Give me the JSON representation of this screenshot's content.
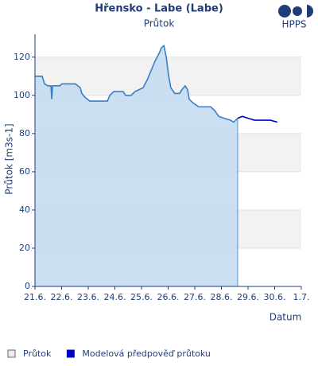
{
  "chart_data": {
    "type": "area-line",
    "title": "Hřensko - Labe (Labe)",
    "subtitle": "Průtok",
    "logo_text": "HPPS",
    "y_label": "Průtok [m3s-1]",
    "x_label": "Datum",
    "ylim": [
      0,
      132
    ],
    "yticks": [
      0,
      20,
      40,
      60,
      80,
      100,
      120
    ],
    "bands": [
      [
        20,
        40
      ],
      [
        60,
        80
      ],
      [
        100,
        120
      ]
    ],
    "xlim": [
      0,
      10
    ],
    "xticks": [
      {
        "value": 0,
        "label": "21.6."
      },
      {
        "value": 1,
        "label": "22.6."
      },
      {
        "value": 2,
        "label": "23.6."
      },
      {
        "value": 3,
        "label": "24.6."
      },
      {
        "value": 4,
        "label": "25.6."
      },
      {
        "value": 5,
        "label": "26.6."
      },
      {
        "value": 6,
        "label": "27.6."
      },
      {
        "value": 7,
        "label": "28.6."
      },
      {
        "value": 8,
        "label": "29.6."
      },
      {
        "value": 9,
        "label": "30.6."
      },
      {
        "value": 10,
        "label": "1.7."
      }
    ],
    "legend": "bottom-left",
    "series": [
      {
        "name": "Průtok",
        "color": "#3a7fc4",
        "fill": "#c5dcf1",
        "area": true,
        "x": [
          0,
          0.27,
          0.36,
          0.48,
          0.6,
          0.63,
          0.66,
          0.93,
          1.01,
          1.52,
          1.61,
          1.7,
          1.76,
          1.88,
          2.06,
          2.72,
          2.81,
          2.96,
          3.31,
          3.4,
          3.61,
          3.76,
          4.06,
          4.21,
          4.36,
          4.51,
          4.66,
          4.75,
          4.84,
          4.93,
          5.01,
          5.1,
          5.25,
          5.43,
          5.52,
          5.64,
          5.73,
          5.79,
          5.94,
          6.15,
          6.6,
          6.75,
          6.9,
          7.1,
          7.34,
          7.46,
          7.61
        ],
        "values": [
          110,
          110,
          106,
          105,
          105,
          98,
          105,
          105,
          106,
          106,
          105,
          104,
          101,
          99,
          97,
          97,
          100,
          102,
          102,
          100,
          100,
          102,
          104,
          108,
          113,
          118,
          122,
          125,
          126,
          120,
          111,
          104,
          101,
          101,
          103,
          105,
          103,
          98,
          96,
          94,
          94,
          92,
          89,
          88,
          87,
          86,
          88
        ]
      },
      {
        "name": "Modelová předpověď průtoku",
        "color": "#0000cc",
        "area": false,
        "x": [
          7.61,
          7.79,
          8.0,
          8.24,
          8.54,
          8.84,
          9.1
        ],
        "values": [
          88,
          89,
          88,
          87,
          87,
          87,
          86
        ]
      }
    ]
  }
}
